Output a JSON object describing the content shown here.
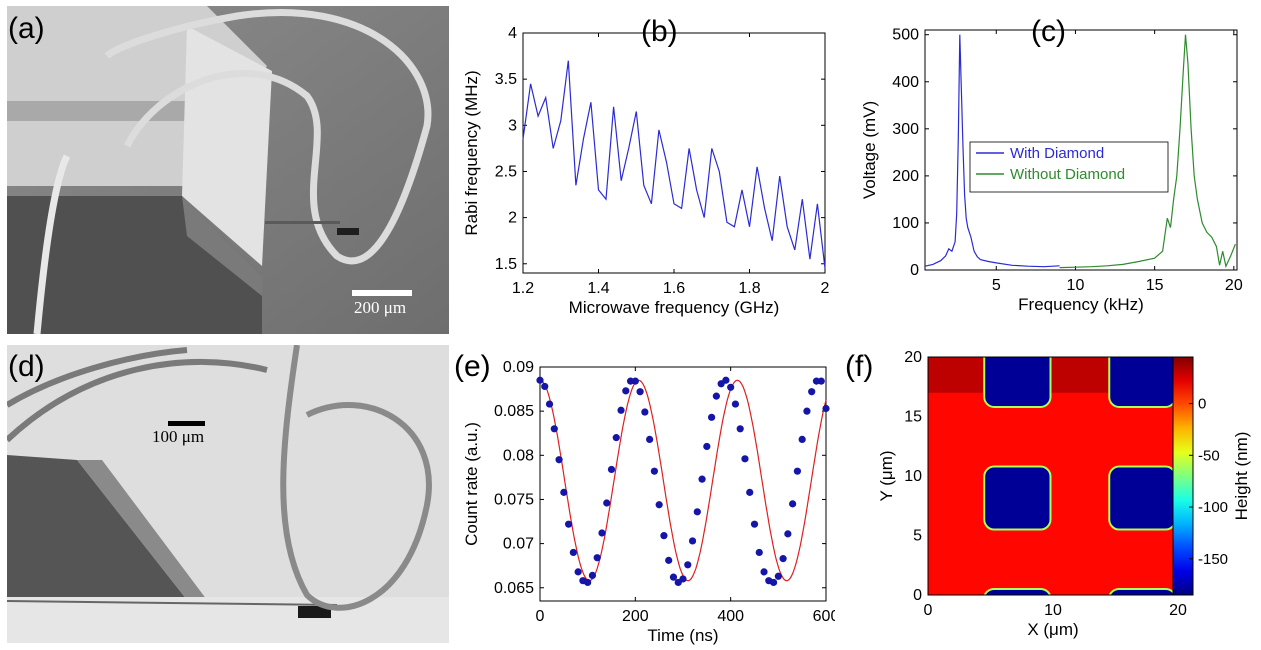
{
  "colors": {
    "blue_series": "#2b2bd6",
    "green_series": "#2e8b2e",
    "fit_red": "#e02020",
    "dot_blue": "#1515a8"
  },
  "panels": {
    "a": {
      "label": "(a)",
      "scale_bar": "200 μm"
    },
    "b": {
      "label": "(b)"
    },
    "c": {
      "label": "(c)"
    },
    "d": {
      "label": "(d)",
      "scale_bar": "100 μm"
    },
    "e": {
      "label": "(e)"
    },
    "f": {
      "label": "(f)"
    }
  },
  "chart_data": [
    {
      "id": "b",
      "type": "line",
      "xlabel": "Microwave frequency (GHz)",
      "ylabel": "Rabi frequency (MHz)",
      "xlim": [
        1.2,
        2.0
      ],
      "ylim": [
        1.4,
        4.0
      ],
      "xticks": [
        "1.2",
        "1.4",
        "1.6",
        "1.8",
        "2"
      ],
      "yticks": [
        "1.5",
        "2",
        "2.5",
        "3",
        "3.5",
        "4"
      ],
      "series": [
        {
          "x": [
            1.2,
            1.22,
            1.24,
            1.26,
            1.28,
            1.3,
            1.32,
            1.34,
            1.36,
            1.38,
            1.4,
            1.42,
            1.44,
            1.46,
            1.48,
            1.5,
            1.52,
            1.54,
            1.56,
            1.58,
            1.6,
            1.62,
            1.64,
            1.66,
            1.68,
            1.7,
            1.72,
            1.74,
            1.76,
            1.78,
            1.8,
            1.82,
            1.84,
            1.86,
            1.88,
            1.9,
            1.92,
            1.94,
            1.96,
            1.98,
            2.0
          ],
          "values": [
            2.85,
            3.45,
            3.1,
            3.3,
            2.75,
            3.05,
            3.7,
            2.35,
            2.85,
            3.25,
            2.3,
            2.2,
            3.2,
            2.4,
            2.75,
            3.15,
            2.35,
            2.15,
            2.95,
            2.6,
            2.15,
            2.1,
            2.75,
            2.3,
            2.0,
            2.75,
            2.5,
            1.95,
            1.9,
            2.3,
            1.9,
            2.55,
            2.1,
            1.75,
            2.45,
            1.9,
            1.65,
            2.2,
            1.55,
            2.15,
            1.45
          ]
        }
      ]
    },
    {
      "id": "c",
      "type": "line",
      "xlabel": "Frequency (kHz)",
      "ylabel": "Voltage (mV)",
      "xlim": [
        0.5,
        20.2
      ],
      "ylim": [
        0,
        510
      ],
      "xticks": [
        "5",
        "10",
        "15",
        "20"
      ],
      "yticks": [
        "0",
        "100",
        "200",
        "300",
        "400",
        "500"
      ],
      "legend": "top-left",
      "series": [
        {
          "name": "With Diamond",
          "x": [
            0.5,
            1.0,
            1.5,
            1.8,
            2.0,
            2.2,
            2.4,
            2.5,
            2.6,
            2.7,
            2.8,
            2.9,
            3.0,
            3.1,
            3.2,
            3.4,
            3.6,
            3.8,
            4.0,
            4.5,
            5.0,
            6.0,
            7.0,
            8.0,
            9.0
          ],
          "values": [
            8,
            12,
            20,
            30,
            45,
            40,
            60,
            120,
            280,
            500,
            380,
            260,
            160,
            110,
            90,
            70,
            40,
            28,
            22,
            18,
            15,
            10,
            8,
            7,
            9
          ]
        },
        {
          "name": "Without Diamond",
          "x": [
            9.0,
            10.0,
            11.0,
            12.0,
            13.0,
            14.0,
            15.0,
            15.5,
            15.8,
            16.0,
            16.2,
            16.4,
            16.6,
            16.8,
            16.95,
            17.1,
            17.3,
            17.5,
            17.7,
            18.0,
            18.3,
            18.6,
            18.9,
            19.1,
            19.3,
            19.5,
            19.8,
            20.1
          ],
          "values": [
            5,
            6,
            7,
            9,
            12,
            18,
            25,
            40,
            110,
            90,
            150,
            200,
            300,
            420,
            500,
            440,
            300,
            200,
            150,
            100,
            80,
            70,
            50,
            10,
            40,
            8,
            30,
            55
          ]
        }
      ]
    },
    {
      "id": "e",
      "type": "scatter",
      "xlabel": "Time (ns)",
      "ylabel": "Count rate (a.u.)",
      "xlim": [
        0,
        600
      ],
      "ylim": [
        0.0635,
        0.09
      ],
      "xticks": [
        "0",
        "200",
        "400",
        "600"
      ],
      "yticks": [
        "0.065",
        "0.07",
        "0.075",
        "0.08",
        "0.085",
        "0.09"
      ],
      "fit": {
        "offset": 0.07715,
        "amplitude": 0.01135,
        "period": 207,
        "color": "#e02020"
      },
      "series": [
        {
          "x": [
            0,
            10,
            20,
            30,
            40,
            50,
            60,
            70,
            80,
            90,
            100,
            110,
            120,
            130,
            140,
            150,
            160,
            170,
            180,
            190,
            200,
            210,
            220,
            230,
            240,
            250,
            260,
            270,
            280,
            290,
            300,
            310,
            320,
            330,
            340,
            350,
            360,
            370,
            380,
            390,
            400,
            410,
            420,
            430,
            440,
            450,
            460,
            470,
            480,
            490,
            500,
            510,
            520,
            530,
            540,
            550,
            560,
            570,
            580,
            590,
            600
          ],
          "values": [
            0.0885,
            0.0878,
            0.0858,
            0.083,
            0.0795,
            0.0758,
            0.0722,
            0.069,
            0.0668,
            0.0658,
            0.0656,
            0.0664,
            0.0684,
            0.0712,
            0.0746,
            0.0784,
            0.082,
            0.0851,
            0.0873,
            0.0884,
            0.0884,
            0.0872,
            0.0849,
            0.0818,
            0.0782,
            0.0744,
            0.0709,
            0.0681,
            0.0662,
            0.0656,
            0.066,
            0.0676,
            0.0703,
            0.0736,
            0.0773,
            0.081,
            0.0843,
            0.0867,
            0.0881,
            0.0885,
            0.0877,
            0.0858,
            0.083,
            0.0796,
            0.0758,
            0.0722,
            0.069,
            0.0668,
            0.0658,
            0.0656,
            0.0663,
            0.0683,
            0.0711,
            0.0745,
            0.0782,
            0.0818,
            0.085,
            0.0872,
            0.0884,
            0.0884,
            0.0853
          ]
        }
      ]
    },
    {
      "id": "f",
      "type": "heatmap",
      "xlabel": "X (μm)",
      "ylabel": "Y (μm)",
      "xlim": [
        0,
        20
      ],
      "ylim": [
        0,
        20
      ],
      "xticks": [
        "0",
        "10",
        "20"
      ],
      "yticks": [
        "0",
        "5",
        "10",
        "15",
        "20"
      ],
      "colorbar": {
        "label": "Height (nm)",
        "range": [
          -185,
          45
        ],
        "ticks": [
          "0",
          "-50",
          "-100",
          "-150"
        ]
      },
      "background_level": 15,
      "squares": [
        {
          "x": [
            4.5,
            9.8
          ],
          "y": [
            15.8,
            21
          ]
        },
        {
          "x": [
            14.5,
            19.8
          ],
          "y": [
            15.8,
            21
          ]
        },
        {
          "x": [
            4.5,
            9.8
          ],
          "y": [
            5.5,
            10.8
          ]
        },
        {
          "x": [
            14.5,
            19.8
          ],
          "y": [
            5.5,
            10.8
          ]
        },
        {
          "x": [
            4.5,
            9.8
          ],
          "y": [
            -1,
            0.5
          ]
        },
        {
          "x": [
            14.5,
            19.8
          ],
          "y": [
            -1,
            0.5
          ]
        }
      ],
      "square_level": -180
    }
  ]
}
